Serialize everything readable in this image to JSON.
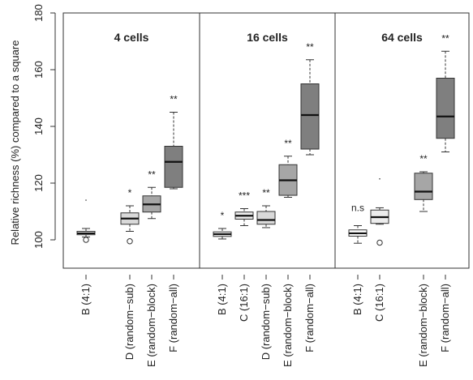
{
  "chart_data": {
    "type": "boxplot",
    "ylabel": "Relative richness (%) compared to a square",
    "ylim": [
      90,
      180
    ],
    "yticks": [
      100,
      120,
      140,
      160,
      180
    ],
    "panels": [
      {
        "title": "4 cells",
        "groups": [
          {
            "label": "B (4:1)",
            "slot": 0,
            "fill": "#ffffff",
            "whisker_low": 101.0,
            "q1": 101.8,
            "median": 102.3,
            "q3": 103.0,
            "whisker_high": 104.0,
            "outliers": [
              100.0,
              114.0
            ],
            "significance": ""
          },
          {
            "label": "D (random−sub)",
            "slot": 2,
            "fill": "#d9d9d9",
            "whisker_low": 103.0,
            "q1": 105.5,
            "median": 107.5,
            "q3": 109.5,
            "whisker_high": 112.0,
            "outliers": [
              99.5
            ],
            "significance": "*"
          },
          {
            "label": "E (random−block)",
            "slot": 3,
            "fill": "#a6a6a6",
            "whisker_low": 107.5,
            "q1": 109.8,
            "median": 112.5,
            "q3": 115.5,
            "whisker_high": 118.5,
            "outliers": [],
            "significance": "**"
          },
          {
            "label": "F (random−all)",
            "slot": 4,
            "fill": "#7f7f7f",
            "whisker_low": 118.0,
            "q1": 118.5,
            "median": 127.5,
            "q3": 133.0,
            "whisker_high": 145.0,
            "outliers": [],
            "significance": "**"
          }
        ]
      },
      {
        "title": "16 cells",
        "groups": [
          {
            "label": "B (4:1)",
            "slot": 0,
            "fill": "#ffffff",
            "whisker_low": 100.3,
            "q1": 101.2,
            "median": 102.0,
            "q3": 102.8,
            "whisker_high": 104.0,
            "outliers": [],
            "significance": "*"
          },
          {
            "label": "C (16:1)",
            "slot": 1,
            "fill": "#ececec",
            "whisker_low": 105.0,
            "q1": 107.3,
            "median": 108.5,
            "q3": 109.8,
            "whisker_high": 111.0,
            "outliers": [],
            "significance": "***"
          },
          {
            "label": "D (random−sub)",
            "slot": 2,
            "fill": "#d9d9d9",
            "whisker_low": 104.3,
            "q1": 105.5,
            "median": 107.0,
            "q3": 110.0,
            "whisker_high": 112.0,
            "outliers": [],
            "significance": "**"
          },
          {
            "label": "E (random−block)",
            "slot": 3,
            "fill": "#a6a6a6",
            "whisker_low": 115.0,
            "q1": 115.7,
            "median": 121.0,
            "q3": 126.5,
            "whisker_high": 129.5,
            "outliers": [],
            "significance": "**"
          },
          {
            "label": "F (random−all)",
            "slot": 4,
            "fill": "#7f7f7f",
            "whisker_low": 130.0,
            "q1": 132.0,
            "median": 144.0,
            "q3": 155.0,
            "whisker_high": 163.5,
            "outliers": [],
            "significance": "**"
          }
        ]
      },
      {
        "title": "64 cells",
        "groups": [
          {
            "label": "B (4:1)",
            "slot": 0,
            "fill": "#ffffff",
            "whisker_low": 98.8,
            "q1": 101.3,
            "median": 102.3,
            "q3": 103.5,
            "whisker_high": 105.0,
            "outliers": [],
            "significance": "n.s"
          },
          {
            "label": "C (16:1)",
            "slot": 1,
            "fill": "#ececec",
            "whisker_low": 105.5,
            "q1": 105.8,
            "median": 108.0,
            "q3": 110.5,
            "whisker_high": 111.3,
            "outliers": [
              99.0,
              121.5
            ],
            "significance": ""
          },
          {
            "label": "E (random−block)",
            "slot": 3,
            "fill": "#a6a6a6",
            "whisker_low": 110.0,
            "q1": 114.2,
            "median": 117.0,
            "q3": 123.5,
            "whisker_high": 124.0,
            "outliers": [],
            "significance": "**"
          },
          {
            "label": "F (random−all)",
            "slot": 4,
            "fill": "#7f7f7f",
            "whisker_low": 131.0,
            "q1": 135.8,
            "median": 143.5,
            "q3": 157.0,
            "whisker_high": 166.5,
            "outliers": [],
            "significance": "**"
          }
        ]
      }
    ]
  }
}
